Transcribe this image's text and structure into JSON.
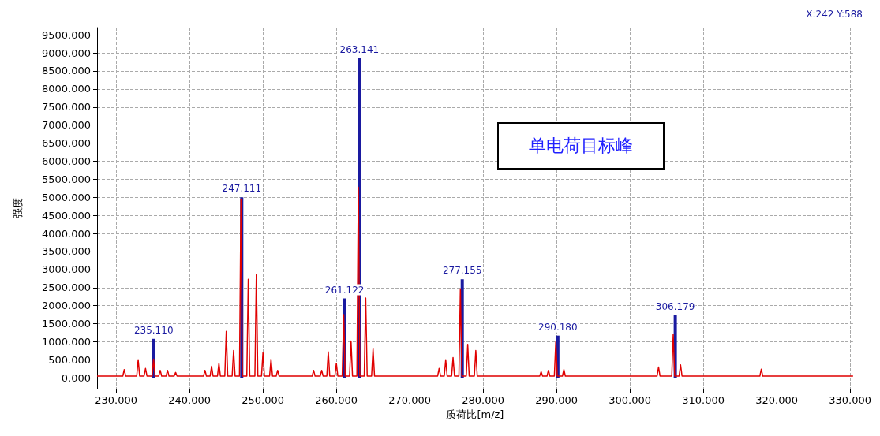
{
  "chart_data": {
    "type": "line",
    "xlabel": "质荷比[m/z]",
    "ylabel": "强度",
    "grid": true,
    "xlim": [
      227.4,
      330.4
    ],
    "xticks": [
      {
        "value": 230,
        "label": "230.000"
      },
      {
        "value": 240,
        "label": "240.000"
      },
      {
        "value": 250,
        "label": "250.000"
      },
      {
        "value": 260,
        "label": "260.000"
      },
      {
        "value": 270,
        "label": "270.000"
      },
      {
        "value": 280,
        "label": "280.000"
      },
      {
        "value": 290,
        "label": "290.000"
      },
      {
        "value": 300,
        "label": "300.000"
      },
      {
        "value": 310,
        "label": "310.000"
      },
      {
        "value": 320,
        "label": "320.000"
      },
      {
        "value": 330,
        "label": "330.000"
      }
    ],
    "ylim": [
      -300,
      9700
    ],
    "yticks": [
      {
        "value": 0,
        "label": "0.000"
      },
      {
        "value": 500,
        "label": "500.000"
      },
      {
        "value": 1000,
        "label": "1000.000"
      },
      {
        "value": 1500,
        "label": "1500.000"
      },
      {
        "value": 2000,
        "label": "2000.000"
      },
      {
        "value": 2500,
        "label": "2500.000"
      },
      {
        "value": 3000,
        "label": "3000.000"
      },
      {
        "value": 3500,
        "label": "3500.000"
      },
      {
        "value": 4000,
        "label": "4000.000"
      },
      {
        "value": 4500,
        "label": "4500.000"
      },
      {
        "value": 5000,
        "label": "5000.000"
      },
      {
        "value": 5500,
        "label": "5500.000"
      },
      {
        "value": 6000,
        "label": "6000.000"
      },
      {
        "value": 6500,
        "label": "6500.000"
      },
      {
        "value": 7000,
        "label": "7000.000"
      },
      {
        "value": 7500,
        "label": "7500.000"
      },
      {
        "value": 8000,
        "label": "8000.000"
      },
      {
        "value": 8500,
        "label": "8500.000"
      },
      {
        "value": 9000,
        "label": "9000.000"
      },
      {
        "value": 9500,
        "label": "9500.000"
      }
    ],
    "annotations": [
      "X:242 Y:588",
      "单电荷目标峰",
      {
        "text": "235.110",
        "x": 235.11,
        "y": 1080
      },
      {
        "text": "247.111",
        "x": 247.111,
        "y": 5000
      },
      {
        "text": "261.122",
        "x": 261.122,
        "y": 2200
      },
      {
        "text": "263.141",
        "x": 263.141,
        "y": 8850
      },
      {
        "text": "277.155",
        "x": 277.155,
        "y": 2730
      },
      {
        "text": "290.180",
        "x": 290.18,
        "y": 1170
      },
      {
        "text": "306.179",
        "x": 306.179,
        "y": 1730
      }
    ],
    "series": [
      {
        "type": "bar",
        "color": "#1a1aa0",
        "x": [
          235.11,
          247.111,
          261.122,
          263.141,
          277.155,
          290.18,
          306.179
        ],
        "values": [
          1080,
          5000,
          2200,
          8850,
          2730,
          1170,
          1730
        ]
      },
      {
        "color": "#e00000",
        "x": [
          227.4,
          230.9,
          231.1,
          231.3,
          232.8,
          233.0,
          233.2,
          233.8,
          234.0,
          234.2,
          234.9,
          235.1,
          235.3,
          235.8,
          236.0,
          236.2,
          236.8,
          237.0,
          237.2,
          237.9,
          238.1,
          238.3,
          241.9,
          242.1,
          242.3,
          242.8,
          243.0,
          243.2,
          243.8,
          244.0,
          244.2,
          244.8,
          245.0,
          245.2,
          245.8,
          246.0,
          246.2,
          246.8,
          247.0,
          247.2,
          247.8,
          248.0,
          248.2,
          248.9,
          249.1,
          249.3,
          249.8,
          250.0,
          250.2,
          250.9,
          251.1,
          251.3,
          251.8,
          252.0,
          252.2,
          256.7,
          256.9,
          257.1,
          257.8,
          258.0,
          258.2,
          258.7,
          258.9,
          259.1,
          259.8,
          260.0,
          260.2,
          260.8,
          261.0,
          261.2,
          261.8,
          262.0,
          262.2,
          262.8,
          263.0,
          263.2,
          263.8,
          264.0,
          264.2,
          264.8,
          265.0,
          265.2,
          273.8,
          274.0,
          274.2,
          274.7,
          274.9,
          275.1,
          275.7,
          275.9,
          276.1,
          276.7,
          276.9,
          277.1,
          277.7,
          277.9,
          278.1,
          278.8,
          279.0,
          279.2,
          287.7,
          287.9,
          288.1,
          288.7,
          288.9,
          289.1,
          289.7,
          289.9,
          290.1,
          290.8,
          291.0,
          291.2,
          303.7,
          303.9,
          304.1,
          305.7,
          305.9,
          306.1,
          306.7,
          306.9,
          307.1,
          317.7,
          317.9,
          318.1,
          330.4
        ],
        "values": [
          50,
          50,
          230,
          50,
          50,
          500,
          50,
          50,
          260,
          50,
          50,
          520,
          50,
          50,
          210,
          50,
          50,
          210,
          50,
          50,
          150,
          50,
          50,
          210,
          50,
          50,
          320,
          50,
          50,
          400,
          50,
          50,
          1290,
          50,
          50,
          760,
          50,
          50,
          4950,
          50,
          50,
          2730,
          50,
          50,
          2870,
          50,
          50,
          700,
          50,
          50,
          520,
          50,
          50,
          210,
          50,
          50,
          210,
          50,
          50,
          210,
          50,
          50,
          720,
          50,
          50,
          400,
          50,
          50,
          1750,
          50,
          50,
          1020,
          50,
          50,
          5280,
          50,
          50,
          2210,
          50,
          50,
          800,
          50,
          50,
          260,
          50,
          50,
          500,
          50,
          50,
          560,
          50,
          50,
          2470,
          50,
          50,
          930,
          50,
          50,
          760,
          50,
          50,
          170,
          50,
          50,
          210,
          50,
          50,
          1000,
          50,
          50,
          230,
          50,
          50,
          300,
          50,
          50,
          1210,
          50,
          50,
          360,
          50,
          50,
          240,
          50,
          50
        ]
      }
    ]
  }
}
